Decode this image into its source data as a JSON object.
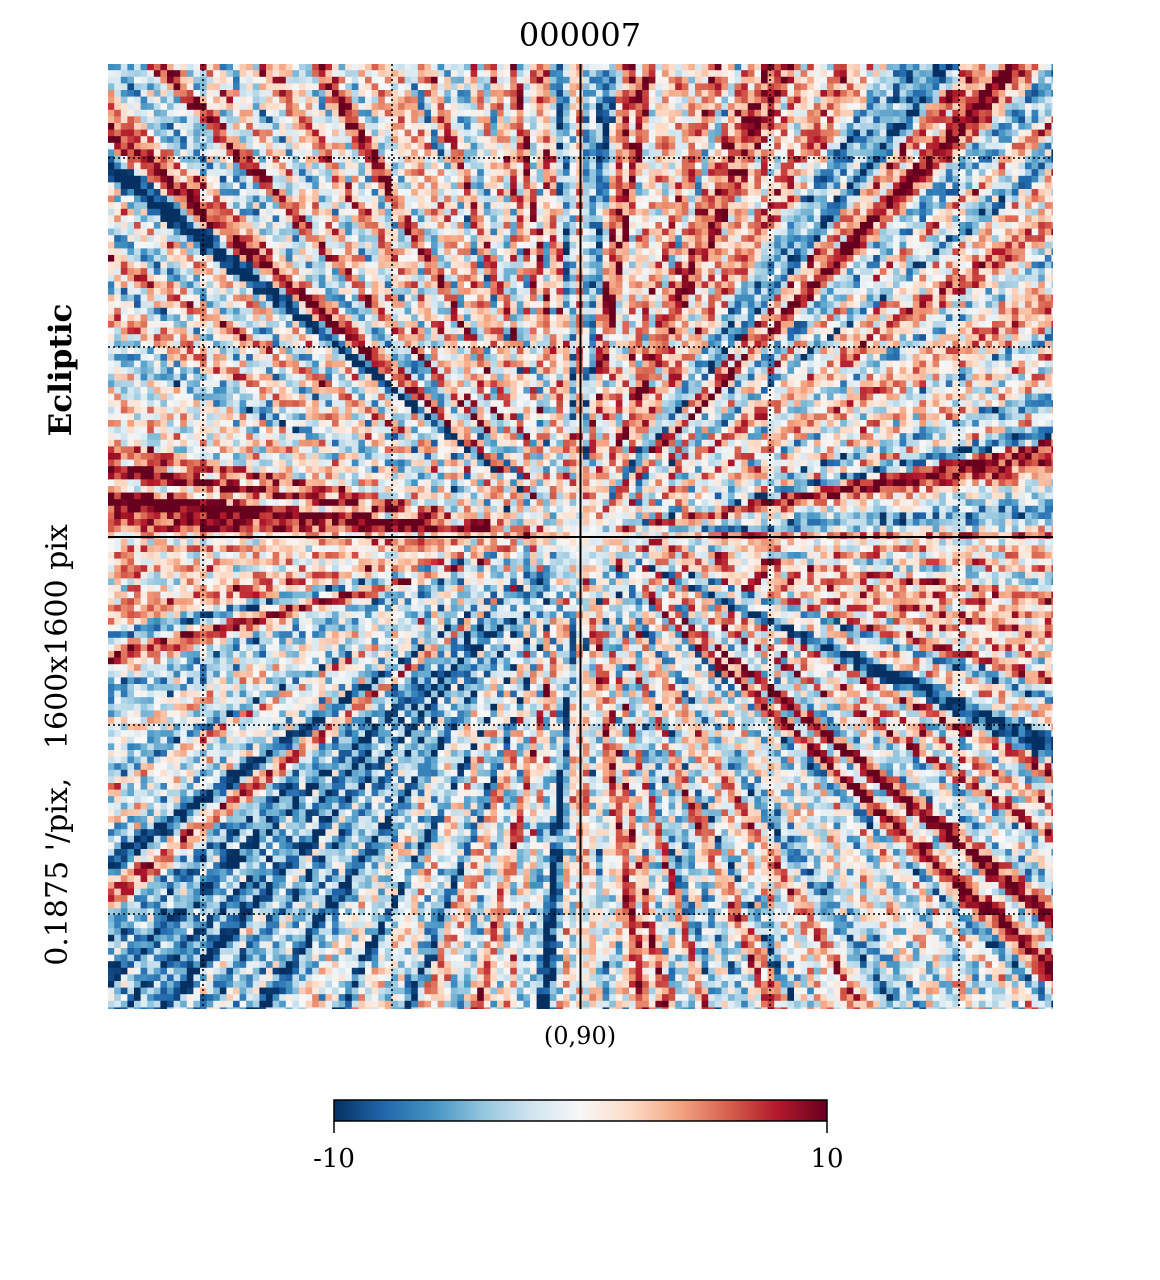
{
  "chart_data": {
    "type": "heatmap",
    "title": "000007",
    "projection_label": "(0,90)",
    "side_label": "0.1875 '/pix,   1600x1600 pix",
    "coord_label": "Ecliptic",
    "colorbar": {
      "colormap": "RdBu_r",
      "vmin": -10,
      "vmax": 10,
      "tick_labels": [
        "-10",
        "10"
      ],
      "colors": [
        "#053061",
        "#2166ac",
        "#4393c3",
        "#92c5de",
        "#d1e5f0",
        "#f7f7f7",
        "#fddbc7",
        "#f4a582",
        "#d6604d",
        "#b2182b",
        "#67001f"
      ]
    },
    "grid": "dotted graticule",
    "center_crosshair": true,
    "pattern": "radial stripes of alternating positive and negative values converging on the map centre"
  }
}
